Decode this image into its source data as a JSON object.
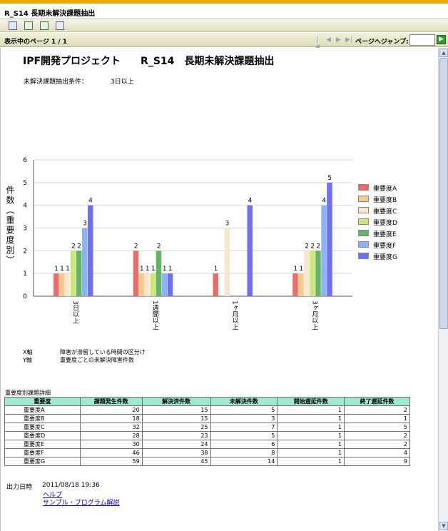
{
  "window": {
    "title": "R_S14  長期未解決課題抽出"
  },
  "toolbar": {
    "icons": [
      "save-icon",
      "export-icon",
      "export-alt-icon",
      "print-icon"
    ]
  },
  "pager": {
    "label": "表示中のページ  1  /  1",
    "jump_label": "ページへジャンプ:",
    "jump_value": "",
    "go_label": "▶"
  },
  "report": {
    "title": "IPF開発プロジェクト　　R_S14　長期未解決課題抽出",
    "condition_label": "未解決課題抽出条件：",
    "condition_value": "3日以上",
    "axis_desc": [
      {
        "axis": "X軸",
        "text": "障害が滞留している時間の区分け"
      },
      {
        "axis": "Y軸",
        "text": "重要度ごとの未解決障害件数"
      }
    ],
    "table_caption": "重要度別課題詳細",
    "table": {
      "headers": [
        "重要度",
        "課題発生件数",
        "解決済件数",
        "未解決件数",
        "開始遅延件数",
        "終了遅延件数"
      ],
      "rows": [
        [
          "重要度A",
          "20",
          "15",
          "5",
          "1",
          "2"
        ],
        [
          "重要度B",
          "18",
          "15",
          "3",
          "1",
          "1"
        ],
        [
          "重要度C",
          "32",
          "25",
          "7",
          "1",
          "5"
        ],
        [
          "重要度D",
          "28",
          "23",
          "5",
          "1",
          "2"
        ],
        [
          "重要度E",
          "30",
          "24",
          "6",
          "1",
          "2"
        ],
        [
          "重要度F",
          "46",
          "38",
          "8",
          "1",
          "4"
        ],
        [
          "重要度G",
          "59",
          "45",
          "14",
          "1",
          "9"
        ]
      ]
    },
    "output_label": "出力日時",
    "output_value": "2011/08/18 19:36",
    "links": [
      "ヘルプ",
      "サンプル・プログラム解説"
    ]
  },
  "chart_data": {
    "type": "bar",
    "ylabel": "件数（重要度別）",
    "ylim": [
      0,
      6
    ],
    "yticks": [
      0,
      1,
      2,
      3,
      4,
      5,
      6
    ],
    "categories": [
      "3日以上",
      "1週間以上",
      "1ヶ月以上",
      "3ヶ月以上"
    ],
    "series": [
      {
        "name": "重要度A",
        "color": "#ef6b6b",
        "values": [
          1,
          2,
          1,
          1
        ]
      },
      {
        "name": "重要度B",
        "color": "#f7c98a",
        "values": [
          1,
          1,
          0,
          1
        ]
      },
      {
        "name": "重要度C",
        "color": "#f7e7cf",
        "values": [
          1,
          1,
          3,
          2
        ]
      },
      {
        "name": "重要度D",
        "color": "#cbe67a",
        "values": [
          2,
          1,
          0,
          2
        ]
      },
      {
        "name": "重要度E",
        "color": "#63b463",
        "values": [
          2,
          2,
          0,
          2
        ]
      },
      {
        "name": "重要度F",
        "color": "#8db4f2",
        "values": [
          3,
          1,
          0,
          4
        ]
      },
      {
        "name": "重要度G",
        "color": "#6f6ff2",
        "values": [
          4,
          1,
          4,
          5
        ]
      }
    ],
    "legend_position": "right",
    "grid": true
  }
}
